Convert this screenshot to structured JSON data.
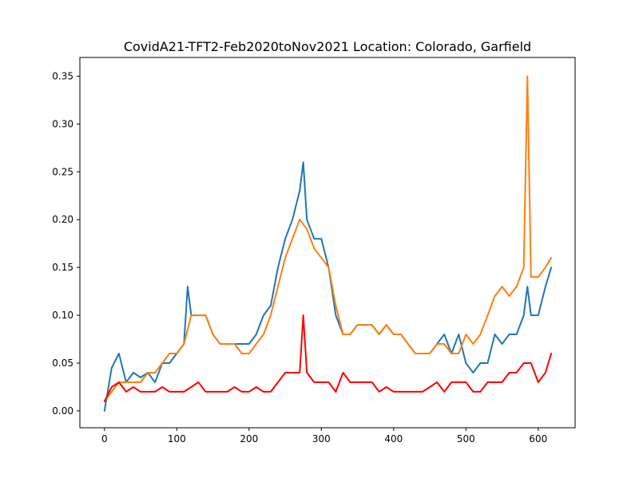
{
  "chart_data": {
    "type": "line",
    "title": "CovidA21-TFT2-Feb2020toNov2021 Location: Colorado, Garfield",
    "xlabel": "",
    "ylabel": "",
    "xlim": [
      -34,
      651
    ],
    "ylim": [
      -0.0176,
      0.3696
    ],
    "x_ticks": [
      0,
      100,
      200,
      300,
      400,
      500,
      600
    ],
    "y_ticks": [
      0.0,
      0.05,
      0.1,
      0.15,
      0.2,
      0.25,
      0.3,
      0.35
    ],
    "x_tick_labels": [
      "0",
      "100",
      "200",
      "300",
      "400",
      "500",
      "600"
    ],
    "y_tick_labels": [
      "0.00",
      "0.05",
      "0.10",
      "0.15",
      "0.20",
      "0.25",
      "0.30",
      "0.35"
    ],
    "grid": false,
    "legend": "none",
    "series": [
      {
        "color": "#1f77b4",
        "x": [
          0,
          10,
          20,
          30,
          40,
          50,
          60,
          70,
          80,
          90,
          100,
          110,
          115,
          120,
          130,
          140,
          150,
          160,
          170,
          180,
          190,
          200,
          210,
          220,
          230,
          240,
          250,
          260,
          270,
          275,
          280,
          290,
          300,
          310,
          320,
          330,
          340,
          350,
          360,
          370,
          380,
          390,
          400,
          410,
          420,
          430,
          440,
          450,
          460,
          470,
          480,
          490,
          500,
          510,
          520,
          530,
          540,
          550,
          560,
          570,
          580,
          585,
          590,
          600,
          610,
          618
        ],
        "y": [
          0.0,
          0.045,
          0.06,
          0.03,
          0.04,
          0.035,
          0.04,
          0.03,
          0.05,
          0.05,
          0.06,
          0.07,
          0.13,
          0.1,
          0.1,
          0.1,
          0.08,
          0.07,
          0.07,
          0.07,
          0.07,
          0.07,
          0.08,
          0.1,
          0.11,
          0.15,
          0.18,
          0.2,
          0.23,
          0.26,
          0.2,
          0.18,
          0.18,
          0.15,
          0.1,
          0.08,
          0.08,
          0.09,
          0.09,
          0.09,
          0.08,
          0.09,
          0.08,
          0.08,
          0.07,
          0.06,
          0.06,
          0.06,
          0.07,
          0.08,
          0.06,
          0.08,
          0.05,
          0.04,
          0.05,
          0.05,
          0.08,
          0.07,
          0.08,
          0.08,
          0.1,
          0.13,
          0.1,
          0.1,
          0.13,
          0.15
        ]
      },
      {
        "color": "#ff7f0e",
        "x": [
          0,
          10,
          20,
          30,
          40,
          50,
          60,
          70,
          80,
          90,
          100,
          110,
          120,
          130,
          140,
          150,
          160,
          170,
          180,
          190,
          200,
          210,
          220,
          230,
          240,
          250,
          260,
          270,
          280,
          290,
          300,
          310,
          320,
          330,
          340,
          350,
          360,
          370,
          380,
          390,
          400,
          410,
          420,
          430,
          440,
          450,
          460,
          470,
          480,
          490,
          500,
          510,
          520,
          530,
          540,
          550,
          560,
          570,
          580,
          585,
          590,
          600,
          610,
          618
        ],
        "y": [
          0.01,
          0.02,
          0.03,
          0.03,
          0.03,
          0.03,
          0.04,
          0.04,
          0.05,
          0.06,
          0.06,
          0.07,
          0.1,
          0.1,
          0.1,
          0.08,
          0.07,
          0.07,
          0.07,
          0.06,
          0.06,
          0.07,
          0.08,
          0.1,
          0.13,
          0.16,
          0.18,
          0.2,
          0.19,
          0.17,
          0.16,
          0.15,
          0.11,
          0.08,
          0.08,
          0.09,
          0.09,
          0.09,
          0.08,
          0.09,
          0.08,
          0.08,
          0.07,
          0.06,
          0.06,
          0.06,
          0.07,
          0.07,
          0.06,
          0.06,
          0.08,
          0.07,
          0.08,
          0.1,
          0.12,
          0.13,
          0.12,
          0.13,
          0.15,
          0.35,
          0.14,
          0.14,
          0.15,
          0.16
        ]
      },
      {
        "color": "#ff0000",
        "x": [
          0,
          10,
          20,
          30,
          40,
          50,
          60,
          70,
          80,
          90,
          100,
          110,
          120,
          130,
          140,
          150,
          160,
          170,
          180,
          190,
          200,
          210,
          220,
          230,
          240,
          250,
          260,
          270,
          275,
          280,
          290,
          300,
          310,
          320,
          330,
          340,
          350,
          360,
          370,
          380,
          390,
          400,
          410,
          420,
          430,
          440,
          450,
          460,
          470,
          480,
          490,
          500,
          510,
          520,
          530,
          540,
          550,
          560,
          570,
          580,
          590,
          600,
          610,
          618
        ],
        "y": [
          0.01,
          0.025,
          0.03,
          0.02,
          0.025,
          0.02,
          0.02,
          0.02,
          0.025,
          0.02,
          0.02,
          0.02,
          0.025,
          0.03,
          0.02,
          0.02,
          0.02,
          0.02,
          0.025,
          0.02,
          0.02,
          0.025,
          0.02,
          0.02,
          0.03,
          0.04,
          0.04,
          0.04,
          0.1,
          0.04,
          0.03,
          0.03,
          0.03,
          0.02,
          0.04,
          0.03,
          0.03,
          0.03,
          0.03,
          0.02,
          0.025,
          0.02,
          0.02,
          0.02,
          0.02,
          0.02,
          0.025,
          0.03,
          0.02,
          0.03,
          0.03,
          0.03,
          0.02,
          0.02,
          0.03,
          0.03,
          0.03,
          0.04,
          0.04,
          0.05,
          0.05,
          0.03,
          0.04,
          0.06
        ]
      }
    ]
  }
}
